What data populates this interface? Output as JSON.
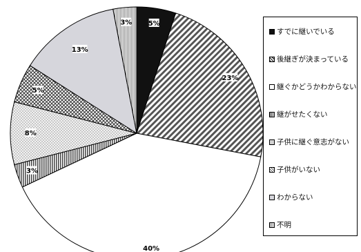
{
  "chart_data": {
    "type": "pie",
    "categories": [
      "すでに継いでいる",
      "後継ぎが決まっている",
      "継ぐかどうかわからない",
      "継がせたくない",
      "子供に継ぐ意志がない",
      "子供がいない",
      "わからない",
      "不明"
    ],
    "values": [
      5,
      23,
      40,
      3,
      8,
      5,
      13,
      3
    ],
    "value_labels": [
      "5%",
      "23%",
      "40%",
      "3%",
      "8%",
      "5%",
      "13%",
      "3%"
    ],
    "slice_order_clockwise_from_top": [
      0,
      1,
      2,
      3,
      4,
      5,
      6,
      7
    ],
    "legend_placement": "right",
    "colors": {
      "solid": "#111111",
      "hatch": "#555555",
      "white": "#ffffff",
      "vstripe": "#444444",
      "dotted": "#e6e6e6",
      "crosshatch": "#333333",
      "lightgray": "#d6d6dc",
      "fine": "#888888"
    },
    "patterns": [
      "solid",
      "diag-hatch",
      "white",
      "vertical-stripes",
      "dotted",
      "cross-hatch",
      "light-gray",
      "fine-stripes"
    ]
  }
}
